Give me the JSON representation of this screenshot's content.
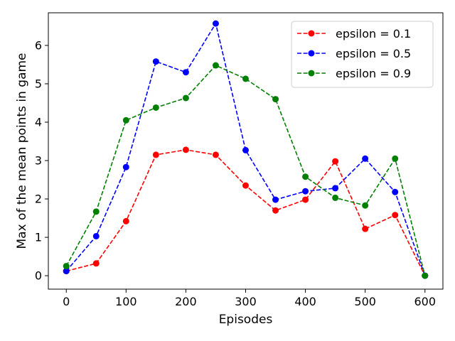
{
  "chart_data": {
    "type": "line",
    "title": "",
    "xlabel": "Episodes",
    "ylabel": "Max of the mean points in game",
    "xlim": [
      -30,
      630
    ],
    "ylim": [
      -0.35,
      6.85
    ],
    "xticks": [
      0,
      100,
      200,
      300,
      400,
      500,
      600
    ],
    "yticks": [
      0,
      1,
      2,
      3,
      4,
      5,
      6
    ],
    "x": [
      0,
      50,
      100,
      150,
      200,
      250,
      300,
      350,
      400,
      450,
      500,
      550,
      600
    ],
    "line_style": "dashed",
    "marker": "circle",
    "grid": false,
    "legend_position": "top-right",
    "series": [
      {
        "name": "epsilon = 0.1",
        "color": "#ff0000",
        "values": [
          0.12,
          0.32,
          1.42,
          3.15,
          3.28,
          3.15,
          2.35,
          1.7,
          1.98,
          2.98,
          1.22,
          1.58,
          0.0
        ]
      },
      {
        "name": "epsilon = 0.5",
        "color": "#0000ff",
        "values": [
          0.12,
          1.03,
          2.83,
          5.58,
          5.3,
          6.57,
          3.27,
          1.98,
          2.2,
          2.28,
          3.05,
          2.18,
          0.0
        ]
      },
      {
        "name": "epsilon = 0.9",
        "color": "#008000",
        "values": [
          0.25,
          1.67,
          4.05,
          4.38,
          4.63,
          5.48,
          5.13,
          4.6,
          2.58,
          2.03,
          1.83,
          3.05,
          0.0
        ]
      }
    ]
  }
}
